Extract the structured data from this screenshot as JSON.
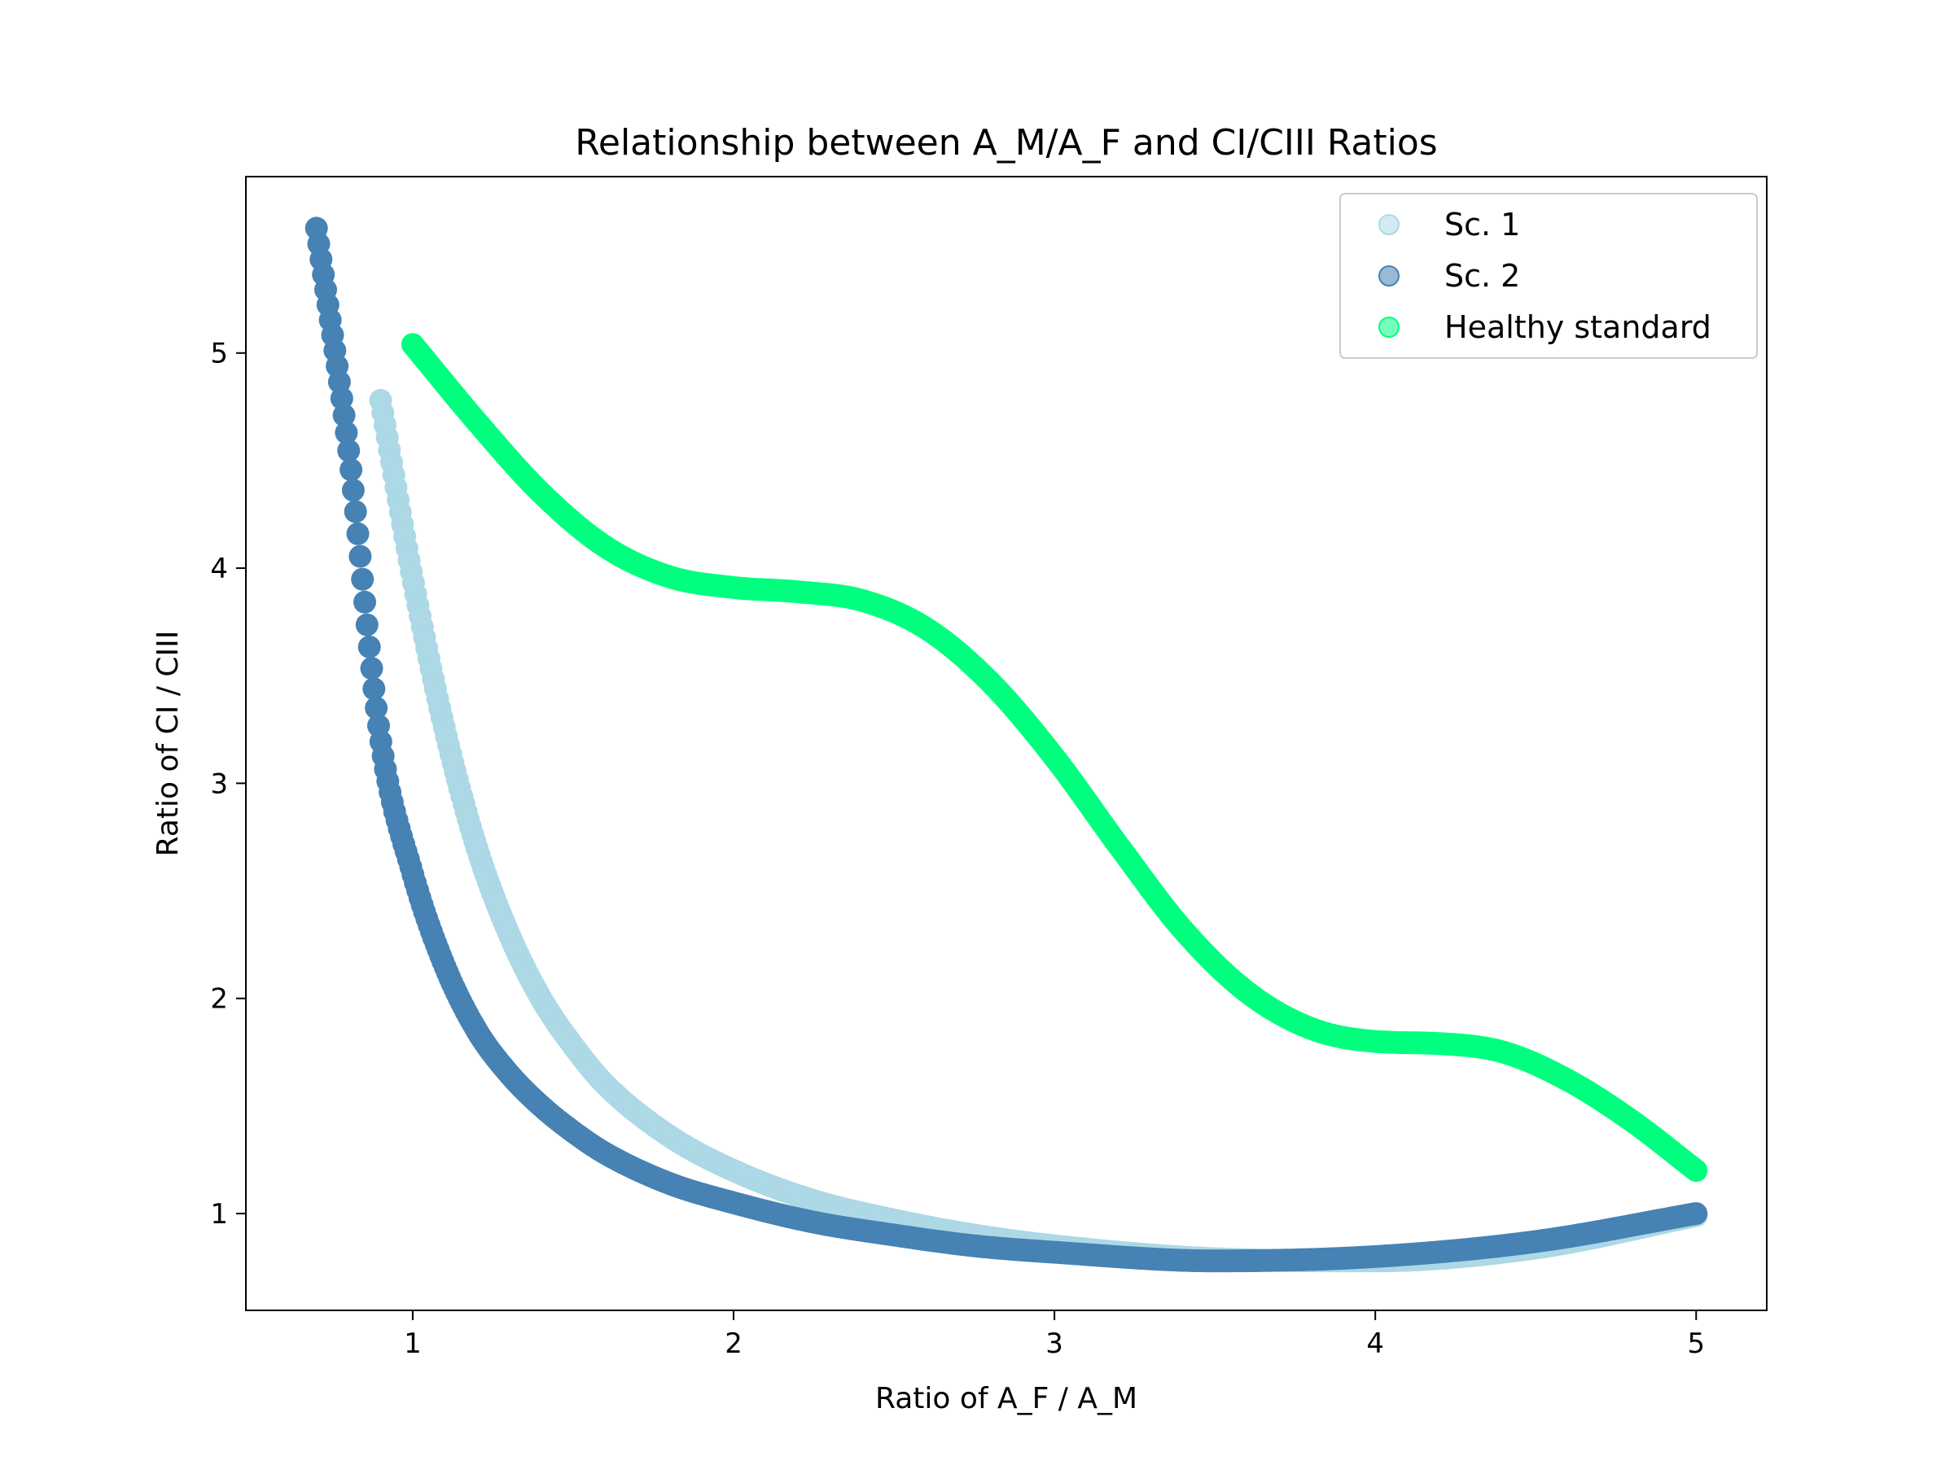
{
  "chart_data": {
    "type": "scatter",
    "title": "Relationship between A_M/A_F and CI/CIII Ratios",
    "xlabel": "Ratio of A_F / A_M",
    "ylabel": "Ratio of CI / CIII",
    "xlim": [
      0.48,
      5.22
    ],
    "ylim": [
      0.55,
      5.82
    ],
    "xticks": [
      1,
      2,
      3,
      4,
      5
    ],
    "yticks": [
      1,
      2,
      3,
      4,
      5
    ],
    "legend_position": "top-right",
    "series": [
      {
        "name": "Sc. 1",
        "color": "#add8e6",
        "x": [
          0.9,
          1.0,
          1.1,
          1.2,
          1.3,
          1.4,
          1.5,
          1.6,
          1.8,
          2.0,
          2.25,
          2.5,
          2.75,
          3.0,
          3.5,
          4.0,
          4.5,
          5.0
        ],
        "y": [
          4.78,
          3.95,
          3.25,
          2.7,
          2.3,
          2.0,
          1.78,
          1.6,
          1.36,
          1.2,
          1.06,
          0.97,
          0.9,
          0.85,
          0.79,
          0.78,
          0.84,
          0.99
        ]
      },
      {
        "name": "Sc. 2",
        "color": "#4682b4",
        "x": [
          0.7,
          0.8,
          0.9,
          1.0,
          1.1,
          1.2,
          1.3,
          1.4,
          1.5,
          1.6,
          1.8,
          2.0,
          2.25,
          2.5,
          2.75,
          3.0,
          3.5,
          4.0,
          4.5,
          5.0
        ],
        "y": [
          5.58,
          4.55,
          3.2,
          2.58,
          2.15,
          1.85,
          1.65,
          1.5,
          1.38,
          1.28,
          1.14,
          1.05,
          0.96,
          0.9,
          0.85,
          0.82,
          0.78,
          0.8,
          0.87,
          1.0
        ]
      },
      {
        "name": "Healthy standard",
        "color": "#00ff7f",
        "x": [
          1.0,
          1.2,
          1.4,
          1.6,
          1.8,
          2.0,
          2.2,
          2.4,
          2.6,
          2.8,
          3.0,
          3.2,
          3.4,
          3.6,
          3.8,
          4.0,
          4.2,
          4.4,
          4.6,
          4.8,
          5.0
        ],
        "y": [
          5.04,
          4.68,
          4.35,
          4.1,
          3.96,
          3.91,
          3.89,
          3.85,
          3.72,
          3.47,
          3.12,
          2.71,
          2.32,
          2.03,
          1.86,
          1.8,
          1.79,
          1.75,
          1.62,
          1.43,
          1.2
        ]
      }
    ]
  }
}
